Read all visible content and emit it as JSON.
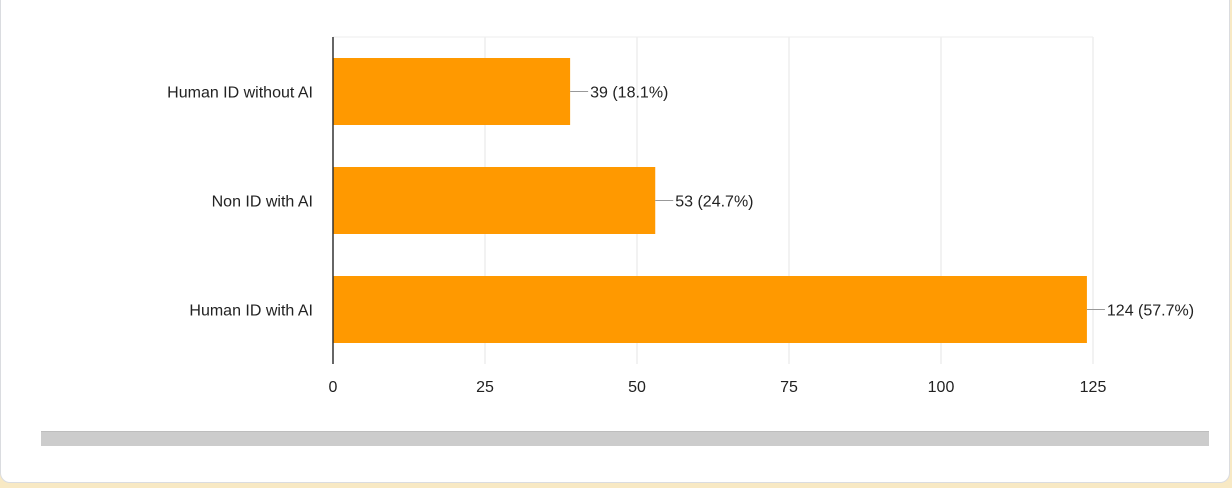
{
  "chart_data": {
    "type": "bar",
    "orientation": "horizontal",
    "categories": [
      "Human ID without AI",
      "Non ID with AI",
      "Human ID with AI"
    ],
    "values": [
      39,
      53,
      124
    ],
    "value_labels": [
      "39 (18.1%)",
      "53 (24.7%)",
      "124 (57.7%)"
    ],
    "xlim": [
      0,
      125
    ],
    "x_ticks": [
      0,
      25,
      50,
      75,
      100,
      125
    ],
    "grid": true,
    "bar_color": "#ff9900"
  }
}
